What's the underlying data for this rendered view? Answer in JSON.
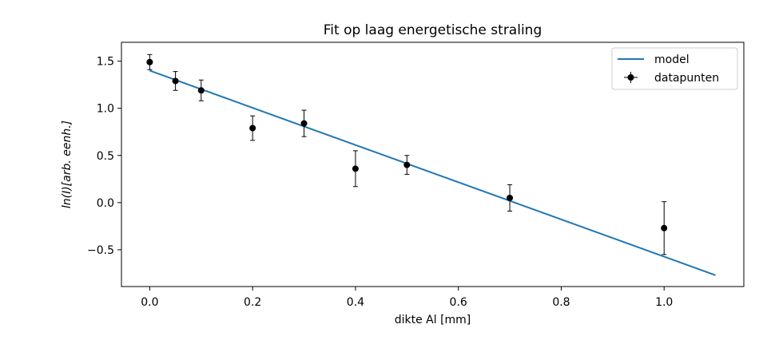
{
  "chart_data": {
    "type": "scatter",
    "title": "Fit op laag energetische straling",
    "xlabel": "dikte Al [mm]",
    "ylabel": "ln(I)[arb. eenh.]",
    "xlim": [
      -0.055,
      1.155
    ],
    "ylim": [
      -0.89,
      1.7
    ],
    "xticks": [
      0.0,
      0.2,
      0.4,
      0.6,
      0.8,
      1.0
    ],
    "xtick_labels": [
      "0.0",
      "0.2",
      "0.4",
      "0.6",
      "0.8",
      "1.0"
    ],
    "yticks": [
      -0.5,
      0.0,
      0.5,
      1.0,
      1.5
    ],
    "ytick_labels": [
      "−0.5",
      "0.0",
      "0.5",
      "1.0",
      "1.5"
    ],
    "grid": false,
    "legend_position": "top-right",
    "colors": {
      "model": "#1f77b4",
      "datapunten": "#000000"
    },
    "series": [
      {
        "name": "model",
        "kind": "line",
        "x": [
          0.0,
          1.1
        ],
        "y": [
          1.4,
          -0.77
        ]
      },
      {
        "name": "datapunten",
        "kind": "errorbar",
        "x": [
          0.0,
          0.05,
          0.1,
          0.2,
          0.3,
          0.4,
          0.5,
          0.7,
          1.0
        ],
        "y": [
          1.49,
          1.29,
          1.19,
          0.79,
          0.84,
          0.36,
          0.4,
          0.05,
          -0.27
        ],
        "yerr": [
          0.08,
          0.1,
          0.11,
          0.13,
          0.14,
          0.19,
          0.1,
          0.14,
          0.28
        ]
      }
    ]
  }
}
